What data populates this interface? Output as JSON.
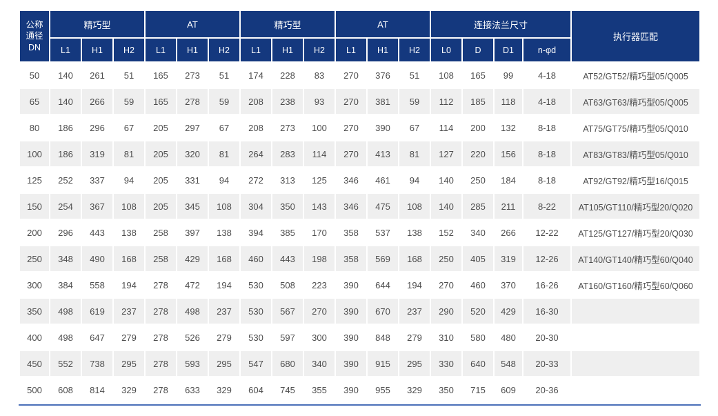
{
  "colors": {
    "header_bg": "#14387e",
    "stripe_bg": "#efefef",
    "body_text": "#4d4d4d",
    "header_text": "#ffffff",
    "bottom_rule": "#4a6fb8"
  },
  "table": {
    "dn_label": "公称\n通径\nDN",
    "groups": [
      {
        "label": "精巧型",
        "span": 3
      },
      {
        "label": "AT",
        "span": 3
      },
      {
        "label": "精巧型",
        "span": 3
      },
      {
        "label": "AT",
        "span": 3
      },
      {
        "label": "连接法兰尺寸",
        "span": 4
      },
      {
        "label": "执行器匹配",
        "span": 1
      }
    ],
    "subheaders": [
      "L1",
      "H1",
      "H2",
      "L1",
      "H1",
      "H2",
      "L1",
      "H1",
      "H2",
      "L1",
      "H1",
      "H2",
      "L0",
      "D",
      "D1",
      "n-φd"
    ],
    "rows": [
      [
        "50",
        "140",
        "261",
        "51",
        "165",
        "273",
        "51",
        "174",
        "228",
        "83",
        "270",
        "376",
        "51",
        "108",
        "165",
        "99",
        "4-18",
        "AT52/GT52/精巧型05/Q005"
      ],
      [
        "65",
        "140",
        "266",
        "59",
        "165",
        "278",
        "59",
        "208",
        "238",
        "93",
        "270",
        "381",
        "59",
        "112",
        "185",
        "118",
        "4-18",
        "AT63/GT63/精巧型05/Q005"
      ],
      [
        "80",
        "186",
        "296",
        "67",
        "205",
        "297",
        "67",
        "208",
        "273",
        "100",
        "270",
        "390",
        "67",
        "114",
        "200",
        "132",
        "8-18",
        "AT75/GT75/精巧型05/Q010"
      ],
      [
        "100",
        "186",
        "319",
        "81",
        "205",
        "320",
        "81",
        "264",
        "283",
        "114",
        "270",
        "413",
        "81",
        "127",
        "220",
        "156",
        "8-18",
        "AT83/GT83/精巧型05/Q010"
      ],
      [
        "125",
        "252",
        "337",
        "94",
        "205",
        "331",
        "94",
        "272",
        "313",
        "125",
        "346",
        "461",
        "94",
        "140",
        "250",
        "184",
        "8-18",
        "AT92/GT92/精巧型16/Q015"
      ],
      [
        "150",
        "254",
        "367",
        "108",
        "205",
        "345",
        "108",
        "304",
        "350",
        "143",
        "346",
        "475",
        "108",
        "140",
        "285",
        "211",
        "8-22",
        "AT105/GT110/精巧型20/Q020"
      ],
      [
        "200",
        "296",
        "443",
        "138",
        "258",
        "397",
        "138",
        "394",
        "385",
        "170",
        "358",
        "537",
        "138",
        "152",
        "340",
        "266",
        "12-22",
        "AT125/GT127/精巧型20/Q030"
      ],
      [
        "250",
        "348",
        "490",
        "168",
        "258",
        "429",
        "168",
        "460",
        "443",
        "198",
        "358",
        "569",
        "168",
        "250",
        "405",
        "319",
        "12-26",
        "AT140/GT140/精巧型60/Q040"
      ],
      [
        "300",
        "384",
        "558",
        "194",
        "278",
        "472",
        "194",
        "530",
        "508",
        "223",
        "390",
        "644",
        "194",
        "270",
        "460",
        "370",
        "16-26",
        "AT160/GT160/精巧型60/Q060"
      ],
      [
        "350",
        "498",
        "619",
        "237",
        "278",
        "498",
        "237",
        "530",
        "567",
        "270",
        "390",
        "670",
        "237",
        "290",
        "520",
        "429",
        "16-30",
        ""
      ],
      [
        "400",
        "498",
        "647",
        "279",
        "278",
        "526",
        "279",
        "530",
        "597",
        "300",
        "390",
        "848",
        "279",
        "310",
        "580",
        "480",
        "20-30",
        ""
      ],
      [
        "450",
        "552",
        "738",
        "295",
        "278",
        "593",
        "295",
        "547",
        "680",
        "340",
        "390",
        "915",
        "295",
        "330",
        "640",
        "548",
        "20-33",
        ""
      ],
      [
        "500",
        "608",
        "814",
        "329",
        "278",
        "633",
        "329",
        "604",
        "745",
        "355",
        "390",
        "955",
        "329",
        "350",
        "715",
        "609",
        "20-36",
        ""
      ]
    ]
  }
}
